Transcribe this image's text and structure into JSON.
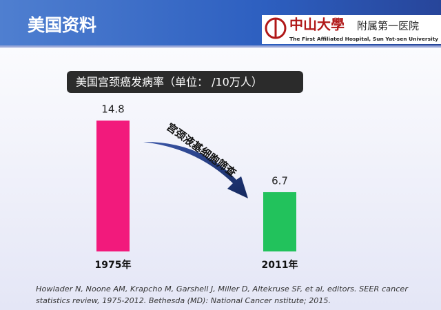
{
  "slide": {
    "heading": "美国资料",
    "logo": {
      "name": "中山大學",
      "unit": "附属第一医院",
      "english": "The First Affiliated Hospital, Sun Yat-sen University"
    },
    "citation": [
      "Howlader N, Noone AM, Krapcho M, Garshell J, Miller D, Altekruse SF, et al, editors. SEER cancer",
      "statistics review, 1975-2012. Bethesda (MD): National Cancer nstitute; 2015."
    ]
  },
  "chart_data": {
    "type": "bar",
    "title": "美国宫颈癌发病率（单位： /10万人）",
    "categories": [
      "1975年",
      "2011年"
    ],
    "values": [
      14.8,
      6.7
    ],
    "colors": [
      "#f21a7c",
      "#22c25c"
    ],
    "annotation": "宫颈液基细胞筛查"
  }
}
